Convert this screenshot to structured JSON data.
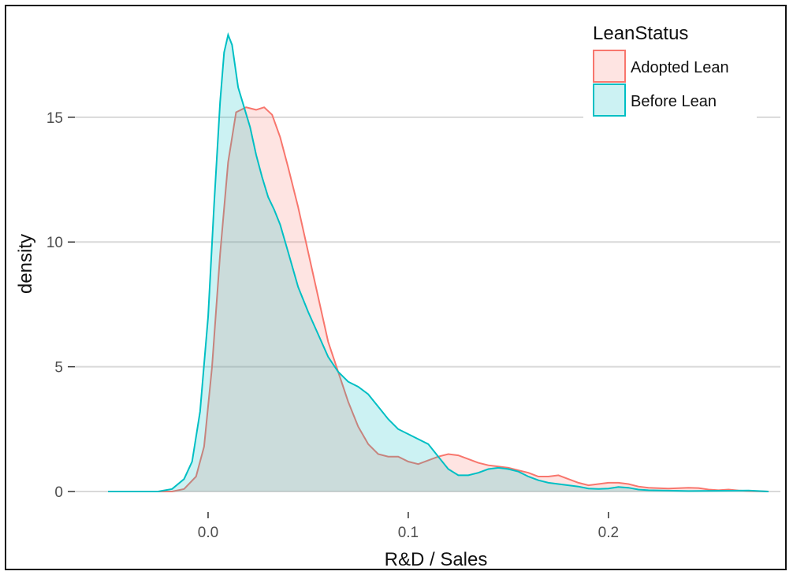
{
  "chart_data": {
    "type": "area",
    "title": "",
    "xlabel": "R&D / Sales",
    "ylabel": "density",
    "xlim": [
      -0.05,
      0.28
    ],
    "ylim": [
      0,
      18.5
    ],
    "x_ticks": [
      0.0,
      0.1,
      0.2
    ],
    "x_tick_labels": [
      "0.0",
      "0.1",
      "0.2"
    ],
    "y_ticks": [
      0,
      5,
      10,
      15
    ],
    "y_tick_labels": [
      "0",
      "5",
      "10",
      "15"
    ],
    "grid": "horizontal major",
    "legend": {
      "title": "LeanStatus",
      "placement": "top-right"
    },
    "series": [
      {
        "name": "Adopted Lean",
        "color": "#F8766D",
        "fill": "#F8766D",
        "points": [
          [
            -0.05,
            0
          ],
          [
            -0.018,
            0
          ],
          [
            -0.012,
            0.1
          ],
          [
            -0.006,
            0.6
          ],
          [
            -0.002,
            1.8
          ],
          [
            0.002,
            5.0
          ],
          [
            0.006,
            9.5
          ],
          [
            0.01,
            13.2
          ],
          [
            0.014,
            15.2
          ],
          [
            0.019,
            15.4
          ],
          [
            0.024,
            15.3
          ],
          [
            0.028,
            15.4
          ],
          [
            0.032,
            15.1
          ],
          [
            0.036,
            14.2
          ],
          [
            0.04,
            13.0
          ],
          [
            0.045,
            11.4
          ],
          [
            0.05,
            9.6
          ],
          [
            0.055,
            7.8
          ],
          [
            0.06,
            6.0
          ],
          [
            0.065,
            4.8
          ],
          [
            0.07,
            3.6
          ],
          [
            0.075,
            2.6
          ],
          [
            0.08,
            1.9
          ],
          [
            0.085,
            1.5
          ],
          [
            0.09,
            1.4
          ],
          [
            0.095,
            1.4
          ],
          [
            0.1,
            1.2
          ],
          [
            0.105,
            1.1
          ],
          [
            0.11,
            1.25
          ],
          [
            0.115,
            1.4
          ],
          [
            0.12,
            1.5
          ],
          [
            0.125,
            1.45
          ],
          [
            0.13,
            1.3
          ],
          [
            0.135,
            1.15
          ],
          [
            0.14,
            1.05
          ],
          [
            0.145,
            1.0
          ],
          [
            0.15,
            0.95
          ],
          [
            0.155,
            0.85
          ],
          [
            0.16,
            0.75
          ],
          [
            0.165,
            0.6
          ],
          [
            0.17,
            0.6
          ],
          [
            0.175,
            0.65
          ],
          [
            0.18,
            0.5
          ],
          [
            0.185,
            0.35
          ],
          [
            0.19,
            0.25
          ],
          [
            0.195,
            0.3
          ],
          [
            0.2,
            0.35
          ],
          [
            0.205,
            0.35
          ],
          [
            0.21,
            0.3
          ],
          [
            0.215,
            0.2
          ],
          [
            0.22,
            0.15
          ],
          [
            0.23,
            0.12
          ],
          [
            0.24,
            0.15
          ],
          [
            0.245,
            0.14
          ],
          [
            0.25,
            0.08
          ],
          [
            0.255,
            0.05
          ],
          [
            0.26,
            0.08
          ],
          [
            0.265,
            0.04
          ],
          [
            0.27,
            0.02
          ],
          [
            0.28,
            0
          ]
        ]
      },
      {
        "name": "Before Lean",
        "color": "#00BFC4",
        "fill": "#00BFC4",
        "points": [
          [
            -0.05,
            0
          ],
          [
            -0.025,
            0
          ],
          [
            -0.018,
            0.1
          ],
          [
            -0.012,
            0.5
          ],
          [
            -0.008,
            1.2
          ],
          [
            -0.004,
            3.2
          ],
          [
            0.0,
            7.0
          ],
          [
            0.003,
            11.5
          ],
          [
            0.006,
            15.6
          ],
          [
            0.008,
            17.6
          ],
          [
            0.01,
            18.3
          ],
          [
            0.012,
            17.9
          ],
          [
            0.015,
            16.2
          ],
          [
            0.018,
            15.4
          ],
          [
            0.021,
            14.6
          ],
          [
            0.024,
            13.5
          ],
          [
            0.027,
            12.6
          ],
          [
            0.03,
            11.8
          ],
          [
            0.033,
            11.3
          ],
          [
            0.036,
            10.7
          ],
          [
            0.04,
            9.6
          ],
          [
            0.045,
            8.2
          ],
          [
            0.05,
            7.2
          ],
          [
            0.055,
            6.3
          ],
          [
            0.06,
            5.4
          ],
          [
            0.065,
            4.8
          ],
          [
            0.07,
            4.4
          ],
          [
            0.075,
            4.2
          ],
          [
            0.08,
            3.9
          ],
          [
            0.085,
            3.4
          ],
          [
            0.09,
            2.9
          ],
          [
            0.095,
            2.5
          ],
          [
            0.1,
            2.3
          ],
          [
            0.105,
            2.1
          ],
          [
            0.11,
            1.9
          ],
          [
            0.115,
            1.4
          ],
          [
            0.12,
            0.9
          ],
          [
            0.125,
            0.65
          ],
          [
            0.13,
            0.65
          ],
          [
            0.135,
            0.75
          ],
          [
            0.14,
            0.9
          ],
          [
            0.145,
            0.95
          ],
          [
            0.15,
            0.9
          ],
          [
            0.155,
            0.8
          ],
          [
            0.16,
            0.6
          ],
          [
            0.165,
            0.45
          ],
          [
            0.17,
            0.35
          ],
          [
            0.175,
            0.3
          ],
          [
            0.18,
            0.25
          ],
          [
            0.185,
            0.2
          ],
          [
            0.19,
            0.12
          ],
          [
            0.195,
            0.1
          ],
          [
            0.2,
            0.12
          ],
          [
            0.205,
            0.18
          ],
          [
            0.21,
            0.15
          ],
          [
            0.215,
            0.08
          ],
          [
            0.22,
            0.05
          ],
          [
            0.24,
            0.02
          ],
          [
            0.26,
            0.03
          ],
          [
            0.27,
            0.04
          ],
          [
            0.275,
            0.02
          ],
          [
            0.28,
            0
          ]
        ]
      }
    ]
  }
}
